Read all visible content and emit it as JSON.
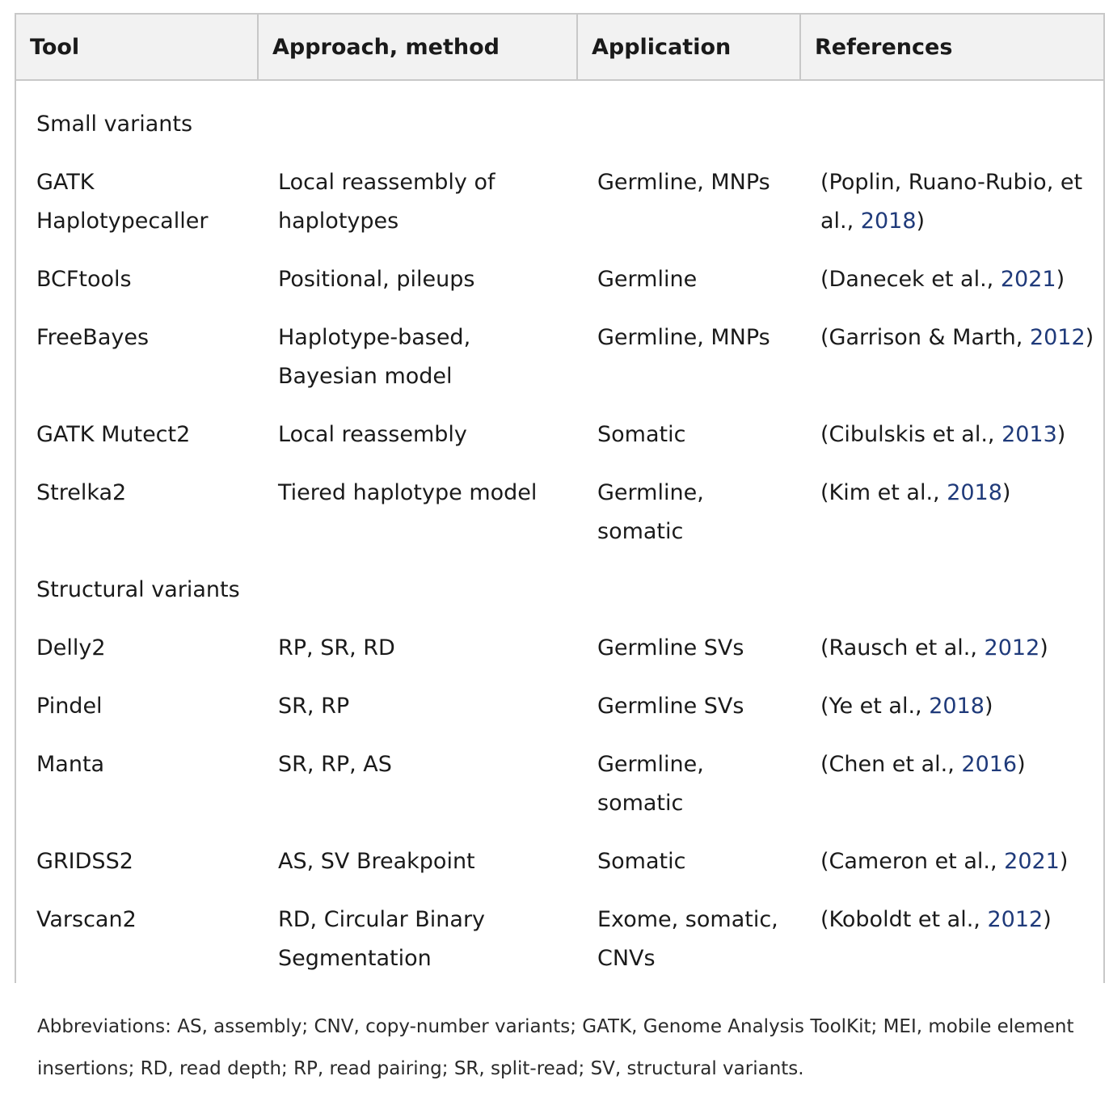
{
  "headers": [
    "Tool",
    "Approach, method",
    "Application",
    "References"
  ],
  "sections": [
    {
      "title": "Small variants",
      "rows": [
        {
          "tool": "GATK Haplotypecaller",
          "tool_lines": [
            "GATK",
            "Haplotypecaller"
          ],
          "approach_lines": [
            "Local reassembly of",
            "haplotypes"
          ],
          "application_lines": [
            "Germline, MNPs"
          ],
          "ref_pre": "(Poplin, Ruano-Rubio, et",
          "ref_pre2": "al., ",
          "ref_year": "2018",
          "ref_post": ")"
        },
        {
          "tool_lines": [
            "BCFtools"
          ],
          "approach_lines": [
            "Positional, pileups"
          ],
          "application_lines": [
            "Germline"
          ],
          "ref_pre": "(Danecek et al., ",
          "ref_year": "2021",
          "ref_post": ")"
        },
        {
          "tool_lines": [
            "FreeBayes"
          ],
          "approach_lines": [
            "Haplotype-based,",
            "Bayesian model"
          ],
          "application_lines": [
            "Germline, MNPs"
          ],
          "ref_pre": "(Garrison & Marth, ",
          "ref_year": "2012",
          "ref_post": ")"
        },
        {
          "tool_lines": [
            "GATK Mutect2"
          ],
          "approach_lines": [
            "Local reassembly"
          ],
          "application_lines": [
            "Somatic"
          ],
          "ref_pre": "(Cibulskis et al., ",
          "ref_year": "2013",
          "ref_post": ")"
        },
        {
          "tool_lines": [
            "Strelka2"
          ],
          "approach_lines": [
            "Tiered haplotype model"
          ],
          "application_lines": [
            "Germline,",
            "somatic"
          ],
          "ref_pre": "(Kim et al., ",
          "ref_year": "2018",
          "ref_post": ")"
        }
      ]
    },
    {
      "title": "Structural variants",
      "rows": [
        {
          "tool_lines": [
            "Delly2"
          ],
          "approach_lines": [
            "RP, SR, RD"
          ],
          "application_lines": [
            "Germline SVs"
          ],
          "ref_pre": "(Rausch et al., ",
          "ref_year": "2012",
          "ref_post": ")"
        },
        {
          "tool_lines": [
            "Pindel"
          ],
          "approach_lines": [
            "SR, RP"
          ],
          "application_lines": [
            "Germline SVs"
          ],
          "ref_pre": "(Ye et al., ",
          "ref_year": "2018",
          "ref_post": ")"
        },
        {
          "tool_lines": [
            "Manta"
          ],
          "approach_lines": [
            "SR, RP, AS"
          ],
          "application_lines": [
            "Germline,",
            "somatic"
          ],
          "ref_pre": "(Chen et al., ",
          "ref_year": "2016",
          "ref_post": ")"
        },
        {
          "tool_lines": [
            "GRIDSS2"
          ],
          "approach_lines": [
            "AS, SV Breakpoint"
          ],
          "application_lines": [
            "Somatic"
          ],
          "ref_pre": "(Cameron et al., ",
          "ref_year": "2021",
          "ref_post": ")"
        },
        {
          "tool_lines": [
            "Varscan2"
          ],
          "approach_lines": [
            "RD, Circular Binary",
            "Segmentation"
          ],
          "application_lines": [
            "Exome, somatic,",
            "CNVs"
          ],
          "ref_pre": "(Koboldt et al., ",
          "ref_year": "2012",
          "ref_post": ")"
        }
      ]
    }
  ],
  "footnote": {
    "line1": "Abbreviations: AS, assembly; CNV, copy-number variants; GATK, Genome Analysis ToolKit; MEI, mobile element",
    "line2": "insertions; RD, read depth; RP, read pairing; SR, split-read; SV, structural variants."
  }
}
